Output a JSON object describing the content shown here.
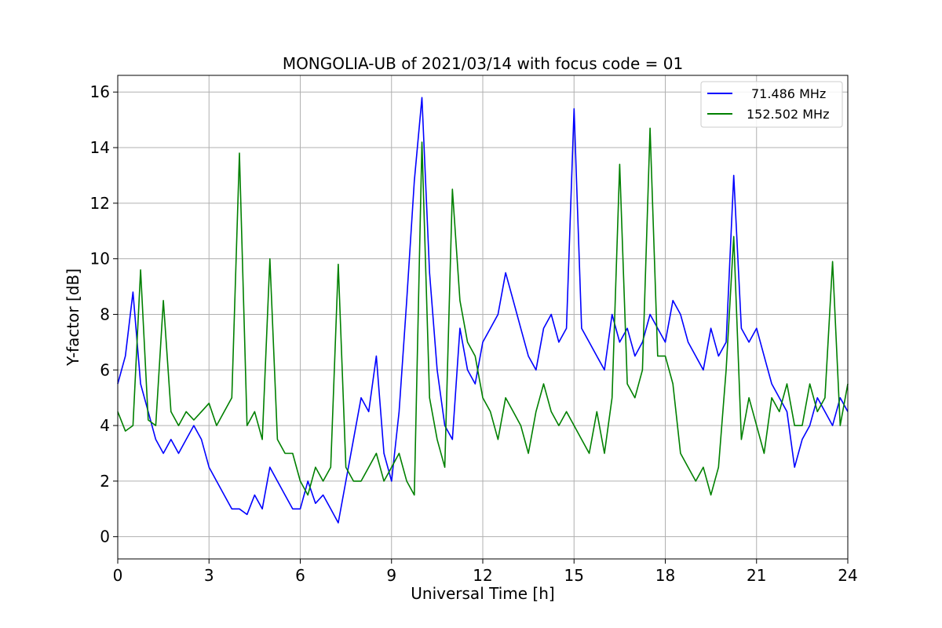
{
  "chart_data": {
    "type": "line",
    "title": "MONGOLIA-UB of 2021/03/14 with focus code = 01",
    "xlabel": "Universal Time [h]",
    "ylabel": "Y-factor [dB]",
    "xlim": [
      0,
      24
    ],
    "ylim": [
      -0.8,
      16.6
    ],
    "xticks": [
      0,
      3,
      6,
      9,
      12,
      15,
      18,
      21,
      24
    ],
    "yticks": [
      0,
      2,
      4,
      6,
      8,
      10,
      12,
      14,
      16
    ],
    "grid": true,
    "legend_position": "top-right",
    "series": [
      {
        "name": "71.486 MHz",
        "color": "#0000ff",
        "x": [
          0,
          0.25,
          0.5,
          0.75,
          1,
          1.25,
          1.5,
          1.75,
          2,
          2.25,
          2.5,
          2.75,
          3,
          3.25,
          3.5,
          3.75,
          4,
          4.25,
          4.5,
          4.75,
          5,
          5.25,
          5.5,
          5.75,
          6,
          6.25,
          6.5,
          6.75,
          7,
          7.25,
          7.5,
          7.75,
          8,
          8.25,
          8.5,
          8.75,
          9,
          9.25,
          9.5,
          9.75,
          10,
          10.25,
          10.5,
          10.75,
          11,
          11.25,
          11.5,
          11.75,
          12,
          12.25,
          12.5,
          12.75,
          13,
          13.25,
          13.5,
          13.75,
          14,
          14.25,
          14.5,
          14.75,
          15,
          15.25,
          15.5,
          15.75,
          16,
          16.25,
          16.5,
          16.75,
          17,
          17.25,
          17.5,
          17.75,
          18,
          18.25,
          18.5,
          18.75,
          19,
          19.25,
          19.5,
          19.75,
          20,
          20.25,
          20.5,
          20.75,
          21,
          21.25,
          21.5,
          21.75,
          22,
          22.25,
          22.5,
          22.75,
          23,
          23.25,
          23.5,
          23.75,
          24
        ],
        "values": [
          5.5,
          6.5,
          8.8,
          5.5,
          4.5,
          3.5,
          3.0,
          3.5,
          3.0,
          3.5,
          4.0,
          3.5,
          2.5,
          2.0,
          1.5,
          1.0,
          1.0,
          0.8,
          1.5,
          1.0,
          2.5,
          2.0,
          1.5,
          1.0,
          1.0,
          2.0,
          1.2,
          1.5,
          1.0,
          0.5,
          2.0,
          3.5,
          5.0,
          4.5,
          6.5,
          3.0,
          2.0,
          4.5,
          8.5,
          12.8,
          15.8,
          9.5,
          6.0,
          4.0,
          3.5,
          7.5,
          6.0,
          5.5,
          7.0,
          7.5,
          8.0,
          9.5,
          8.5,
          7.5,
          6.5,
          6.0,
          7.5,
          8.0,
          7.0,
          7.5,
          15.4,
          7.5,
          7.0,
          6.5,
          6.0,
          8.0,
          7.0,
          7.5,
          6.5,
          7.0,
          8.0,
          7.5,
          7.0,
          8.5,
          8.0,
          7.0,
          6.5,
          6.0,
          7.5,
          6.5,
          7.0,
          13.0,
          7.5,
          7.0,
          7.5,
          6.5,
          5.5,
          5.0,
          4.5,
          2.5,
          3.5,
          4.0,
          5.0,
          4.5,
          4.0,
          5.0,
          4.5
        ]
      },
      {
        "name": "152.502 MHz",
        "color": "#008000",
        "x": [
          0,
          0.25,
          0.5,
          0.75,
          1,
          1.25,
          1.5,
          1.75,
          2,
          2.25,
          2.5,
          2.75,
          3,
          3.25,
          3.5,
          3.75,
          4,
          4.25,
          4.5,
          4.75,
          5,
          5.25,
          5.5,
          5.75,
          6,
          6.25,
          6.5,
          6.75,
          7,
          7.25,
          7.5,
          7.75,
          8,
          8.25,
          8.5,
          8.75,
          9,
          9.25,
          9.5,
          9.75,
          10,
          10.25,
          10.5,
          10.75,
          11,
          11.25,
          11.5,
          11.75,
          12,
          12.25,
          12.5,
          12.75,
          13,
          13.25,
          13.5,
          13.75,
          14,
          14.25,
          14.5,
          14.75,
          15,
          15.25,
          15.5,
          15.75,
          16,
          16.25,
          16.5,
          16.75,
          17,
          17.25,
          17.5,
          17.75,
          18,
          18.25,
          18.5,
          18.75,
          19,
          19.25,
          19.5,
          19.75,
          20,
          20.25,
          20.5,
          20.75,
          21,
          21.25,
          21.5,
          21.75,
          22,
          22.25,
          22.5,
          22.75,
          23,
          23.25,
          23.5,
          23.75,
          24
        ],
        "values": [
          4.5,
          3.8,
          4.0,
          9.6,
          4.2,
          4.0,
          8.5,
          4.5,
          4.0,
          4.5,
          4.2,
          4.5,
          4.8,
          4.0,
          4.5,
          5.0,
          13.8,
          4.0,
          4.5,
          3.5,
          10.0,
          3.5,
          3.0,
          3.0,
          2.0,
          1.5,
          2.5,
          2.0,
          2.5,
          9.8,
          2.5,
          2.0,
          2.0,
          2.5,
          3.0,
          2.0,
          2.5,
          3.0,
          2.0,
          1.5,
          14.2,
          5.0,
          3.5,
          2.5,
          12.5,
          8.5,
          7.0,
          6.5,
          5.0,
          4.5,
          3.5,
          5.0,
          4.5,
          4.0,
          3.0,
          4.5,
          5.5,
          4.5,
          4.0,
          4.5,
          4.0,
          3.5,
          3.0,
          4.5,
          3.0,
          5.0,
          13.4,
          5.5,
          5.0,
          6.0,
          14.7,
          6.5,
          6.5,
          5.5,
          3.0,
          2.5,
          2.0,
          2.5,
          1.5,
          2.5,
          6.0,
          10.8,
          3.5,
          5.0,
          4.0,
          3.0,
          5.0,
          4.5,
          5.5,
          4.0,
          4.0,
          5.5,
          4.5,
          5.0,
          9.9,
          4.0,
          5.5
        ]
      }
    ]
  }
}
